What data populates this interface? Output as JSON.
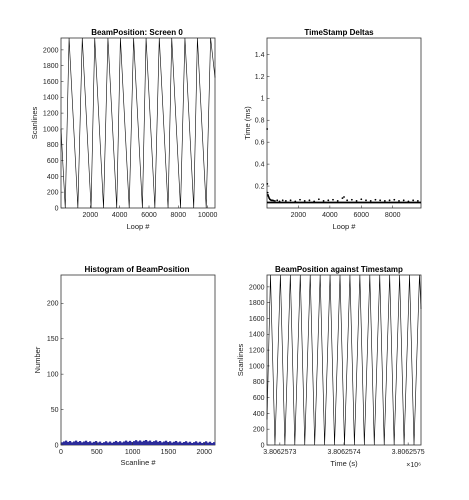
{
  "chart_data": [
    {
      "type": "line",
      "title": "BeamPosition: Screen 0",
      "xlabel": "Loop #",
      "ylabel": "Scanlines",
      "xlim": [
        0,
        10500
      ],
      "ylim": [
        0,
        2150
      ],
      "xticks": [
        2000,
        4000,
        6000,
        8000,
        10000
      ],
      "yticks": [
        0,
        200,
        400,
        600,
        800,
        1000,
        1200,
        1400,
        1600,
        1800,
        2000
      ],
      "series": [
        {
          "color": "#000000",
          "pattern": "sawtooth",
          "x": [
            0,
            290,
            550,
            1150,
            1450,
            2050,
            2300,
            2900,
            3200,
            3800,
            4050,
            4650,
            4950,
            5550,
            5800,
            6400,
            6700,
            7300,
            7550,
            8150,
            8450,
            9050,
            9300,
            9900,
            10200,
            10500
          ],
          "y": [
            1000,
            0,
            2150,
            0,
            2150,
            0,
            2150,
            0,
            2150,
            0,
            2150,
            0,
            2150,
            0,
            2150,
            0,
            2150,
            0,
            2150,
            0,
            2150,
            0,
            2150,
            0,
            2150,
            1650
          ]
        }
      ]
    },
    {
      "type": "scatter",
      "title": "TimeStamp Deltas",
      "xlabel": "Loop #",
      "ylabel": "Time (ms)",
      "xlim": [
        0,
        9800
      ],
      "ylim": [
        0,
        1.55
      ],
      "xticks": [
        2000,
        4000,
        6000,
        8000
      ],
      "yticks": [
        0.2,
        0.4,
        0.6,
        0.8,
        1,
        1.2,
        1.4
      ],
      "baseline": 0.05,
      "series": [
        {
          "color": "#000000",
          "x": [
            10,
            20,
            40,
            60,
            80,
            110,
            140,
            180,
            220,
            270,
            330,
            400,
            500,
            650,
            800,
            1000,
            1200,
            1500,
            1800,
            2100,
            2400,
            2700,
            3000,
            3300,
            3600,
            3900,
            4200,
            4500,
            4800,
            4900,
            5100,
            5400,
            5700,
            6000,
            6300,
            6600,
            6900,
            7200,
            7500,
            7800,
            8100,
            8400,
            8700,
            9000,
            9300,
            9600
          ],
          "y": [
            0.72,
            0.22,
            0.14,
            0.12,
            0.11,
            0.1,
            0.09,
            0.08,
            0.075,
            0.07,
            0.07,
            0.068,
            0.065,
            0.07,
            0.06,
            0.07,
            0.065,
            0.07,
            0.06,
            0.075,
            0.065,
            0.07,
            0.06,
            0.08,
            0.065,
            0.07,
            0.075,
            0.065,
            0.09,
            0.1,
            0.07,
            0.075,
            0.065,
            0.08,
            0.07,
            0.065,
            0.075,
            0.07,
            0.065,
            0.07,
            0.075,
            0.065,
            0.07,
            0.06,
            0.07,
            0.065
          ]
        }
      ]
    },
    {
      "type": "bar",
      "title": "Histogram of BeamPosition",
      "xlabel": "Scanline #",
      "ylabel": "Number",
      "xlim": [
        0,
        2150
      ],
      "ylim": [
        0,
        240
      ],
      "xticks": [
        0,
        500,
        1000,
        1500,
        2000
      ],
      "yticks": [
        0,
        50,
        100,
        150,
        200
      ],
      "bin_count": 2150,
      "bar_color": "#2b2b9a",
      "profile": [
        {
          "x": 0,
          "value": 5
        },
        {
          "x": 300,
          "value": 5
        },
        {
          "x": 600,
          "value": 4
        },
        {
          "x": 900,
          "value": 5
        },
        {
          "x": 1150,
          "value": 6
        },
        {
          "x": 1400,
          "value": 5
        },
        {
          "x": 1800,
          "value": 4
        },
        {
          "x": 2150,
          "value": 4
        }
      ]
    },
    {
      "type": "line",
      "title": "BeamPosition against Timestamp",
      "xlabel": "Time (s)",
      "ylabel": "Scanlines",
      "x_multiplier": "×10⁶",
      "xlim": [
        3.80625728,
        3.80625752
      ],
      "ylim": [
        0,
        2150
      ],
      "xticks": [
        3.8062573,
        3.8062574,
        3.8062575
      ],
      "xticklabels": [
        "3.8062573",
        "3.8062574",
        "3.8062575"
      ],
      "yticks": [
        0,
        200,
        400,
        600,
        800,
        1000,
        1200,
        1400,
        1600,
        1800,
        2000
      ],
      "series": [
        {
          "color": "#000000",
          "pattern": "sawtooth",
          "period_fraction": 0.0645,
          "ramp_fraction": 0.55
        }
      ]
    }
  ]
}
